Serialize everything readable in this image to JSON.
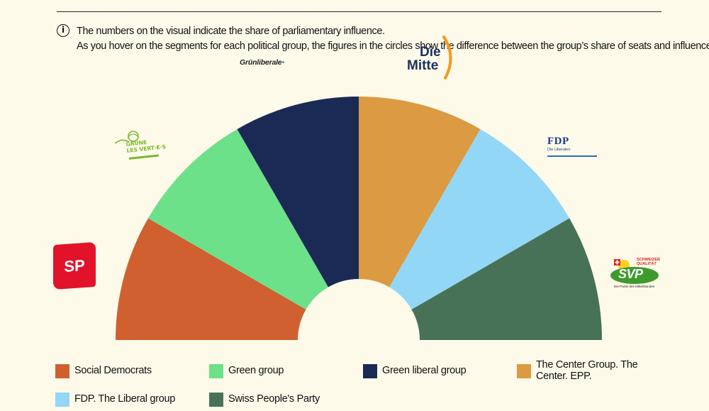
{
  "info": {
    "icon": "info-icon",
    "line1": "The numbers on the visual indicate the share of parliamentary influence.",
    "line2": "As you hover on the segments for each political group, the figures in the circles show the difference between the group’s share of seats and influence."
  },
  "logos": {
    "sp": "SP",
    "gruene_line1": "GRÜNE",
    "gruene_line2": "LES VERT·E·S",
    "grunliberale": "Grünliberale",
    "mitte_line1": "Die",
    "mitte_line2": "Mitte",
    "fdp_title": "FDP",
    "fdp_sub": "Die Liberalen",
    "svp_word": "SVP",
    "svp_top": "SCHWEIZER QUALITÄT",
    "svp_bottom": "Die Partei des Mittelstandes"
  },
  "chart_data": {
    "type": "pie",
    "variant": "semicircle",
    "title": "",
    "series": [
      {
        "name": "Social Democrats",
        "value": 16.67,
        "color": "#d06030"
      },
      {
        "name": "Green group",
        "value": 16.67,
        "color": "#6de08a"
      },
      {
        "name": "Green liberal group",
        "value": 16.67,
        "color": "#1b2a54"
      },
      {
        "name": "The Center Group. The Center. EPP.",
        "value": 16.67,
        "color": "#dc9a42"
      },
      {
        "name": "FDP. The Liberal group",
        "value": 16.67,
        "color": "#92d7f6"
      },
      {
        "name": "Swiss People's Party",
        "value": 16.67,
        "color": "#487258"
      }
    ],
    "legend_position": "bottom"
  }
}
